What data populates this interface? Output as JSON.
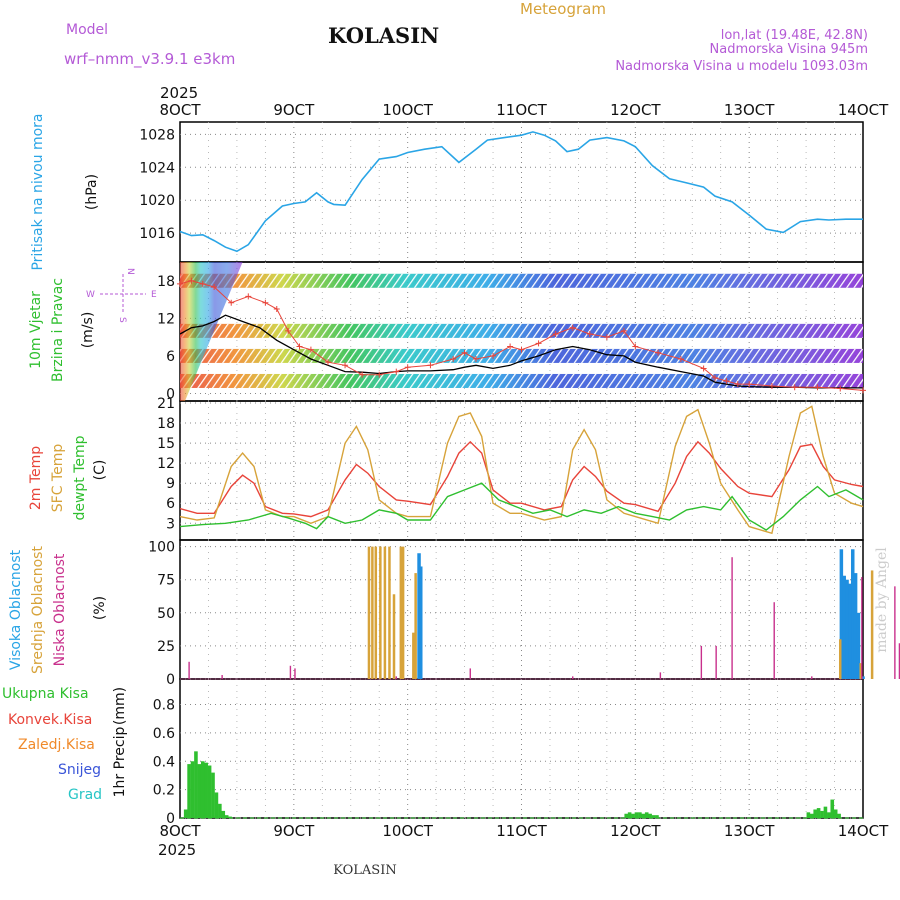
{
  "header": {
    "meteogram_label": "Meteogram",
    "model_label": "Model",
    "model_name": "wrf–nmm_v3.9.1  e3km",
    "station": "KOLASIN",
    "lonlat": "lon,lat (19.48E, 42.8N)",
    "elevation": "Nadmorska Visina 945m",
    "model_elevation": "Nadmorska Visina u modelu 1093.03m",
    "watermark": "made by Angel",
    "footer_station": "KOLASIN"
  },
  "colors": {
    "pressure": "#2aa5e6",
    "temp2m": "#e8443a",
    "sfc_temp": "#d7a33a",
    "dewpoint": "#2fbf2f",
    "high_cloud": "#1f8fe0",
    "mid_cloud": "#d7a33a",
    "low_cloud": "#c8308c",
    "precip_total": "#2fbf2f",
    "wind_speed_cross": "#e8443a",
    "wind_line": "#000000",
    "label_magenta": "#b45ad6"
  },
  "time_axis": {
    "top_year": "2025",
    "bottom_year": "2025",
    "ticks": [
      "8OCT",
      "9OCT",
      "10OCT",
      "11OCT",
      "12OCT",
      "13OCT",
      "14OCT"
    ],
    "tick_days": [
      0,
      1,
      2,
      3,
      4,
      5,
      6
    ]
  },
  "chart_data": [
    {
      "type": "line",
      "id": "pressure",
      "ylabel_main": "Pritisak na nivou mora",
      "ylabel_unit": "(hPa)",
      "ylim": [
        1012.5,
        1029.5
      ],
      "yticks": [
        1016,
        1020,
        1024,
        1028
      ],
      "series": [
        {
          "name": "MSLP",
          "x": [
            0,
            0.1,
            0.2,
            0.3,
            0.4,
            0.5,
            0.6,
            0.75,
            0.9,
            1.0,
            1.1,
            1.2,
            1.3,
            1.35,
            1.45,
            1.6,
            1.75,
            1.9,
            2.0,
            2.15,
            2.3,
            2.45,
            2.6,
            2.7,
            2.85,
            3.0,
            3.1,
            3.2,
            3.3,
            3.4,
            3.5,
            3.6,
            3.75,
            3.9,
            4.0,
            4.15,
            4.3,
            4.45,
            4.6,
            4.7,
            4.85,
            5.0,
            5.15,
            5.3,
            5.45,
            5.6,
            5.7,
            5.85,
            6.0
          ],
          "y": [
            1016.2,
            1015.7,
            1015.8,
            1015.1,
            1014.3,
            1013.8,
            1014.6,
            1017.5,
            1019.3,
            1019.6,
            1019.8,
            1020.9,
            1019.8,
            1019.5,
            1019.4,
            1022.5,
            1025.0,
            1025.3,
            1025.8,
            1026.2,
            1026.5,
            1024.6,
            1026.2,
            1027.3,
            1027.6,
            1027.9,
            1028.3,
            1027.9,
            1027.2,
            1025.9,
            1026.2,
            1027.3,
            1027.6,
            1027.2,
            1026.5,
            1024.2,
            1022.6,
            1022.1,
            1021.6,
            1020.5,
            1019.8,
            1018.2,
            1016.5,
            1016.1,
            1017.4,
            1017.7,
            1017.6,
            1017.7,
            1017.7
          ]
        }
      ]
    },
    {
      "type": "line",
      "id": "wind",
      "ylabel_main": "10m Vjetar",
      "ylabel_sub": "Brzina i Pravac",
      "ylabel_unit": "(m/s)",
      "compass": {
        "n": "N",
        "w": "W",
        "e": "E",
        "s": "S"
      },
      "ylim": [
        -1.2,
        21
      ],
      "yticks": [
        0,
        6,
        12,
        18
      ],
      "series": [
        {
          "name": "wind speed mean",
          "x": [
            0,
            0.1,
            0.2,
            0.3,
            0.4,
            0.55,
            0.7,
            0.85,
            1.0,
            1.15,
            1.3,
            1.45,
            1.6,
            1.75,
            1.9,
            2.0,
            2.2,
            2.4,
            2.5,
            2.6,
            2.75,
            2.9,
            3.0,
            3.15,
            3.3,
            3.45,
            3.6,
            3.75,
            3.9,
            4.0,
            4.2,
            4.4,
            4.6,
            4.7,
            4.8,
            4.9,
            5.0,
            5.2,
            5.4,
            5.6,
            5.8,
            6.0
          ],
          "y": [
            9.5,
            10.5,
            10.8,
            11.5,
            12.5,
            11.5,
            10.5,
            8.5,
            7.0,
            5.5,
            4.5,
            3.5,
            3.4,
            3.2,
            3.5,
            3.6,
            3.6,
            3.8,
            4.2,
            4.5,
            4.0,
            4.5,
            5.2,
            6.0,
            7.0,
            7.5,
            7.0,
            6.2,
            6.0,
            5.0,
            4.2,
            3.5,
            2.8,
            1.8,
            1.5,
            1.2,
            1.1,
            1.0,
            1.0,
            0.9,
            0.9,
            0.9
          ]
        },
        {
          "name": "wind gust",
          "x": [
            0,
            0.1,
            0.2,
            0.3,
            0.45,
            0.6,
            0.75,
            0.85,
            0.95,
            1.05,
            1.15,
            1.3,
            1.45,
            1.6,
            1.75,
            1.9,
            2.0,
            2.2,
            2.4,
            2.5,
            2.6,
            2.75,
            2.9,
            3.0,
            3.15,
            3.3,
            3.45,
            3.6,
            3.75,
            3.9,
            4.0,
            4.2,
            4.4,
            4.6,
            4.7,
            4.8,
            4.9,
            5.0,
            5.2,
            5.4,
            5.6,
            5.8,
            6.0
          ],
          "y": [
            17.5,
            18.0,
            17.5,
            17.0,
            14.5,
            15.5,
            14.5,
            13.5,
            10.0,
            7.5,
            7.0,
            5.0,
            4.5,
            3.0,
            3.0,
            3.5,
            4.2,
            4.5,
            5.5,
            6.5,
            5.5,
            6.0,
            7.5,
            7.0,
            8.0,
            9.5,
            10.5,
            9.5,
            9.0,
            10.0,
            7.5,
            6.5,
            5.5,
            4.0,
            2.5,
            2.0,
            1.5,
            1.5,
            1.2,
            1.0,
            1.0,
            0.8,
            0.5
          ]
        }
      ],
      "barb_rows": [
        2,
        6,
        10,
        18
      ]
    },
    {
      "type": "line",
      "id": "temperature",
      "ylabel_main": "2m Temp",
      "ylabel_sub": "SFC Temp",
      "ylabel_sub2": "dewpt Temp",
      "ylabel_unit": "(C)",
      "ylim": [
        0.5,
        21.3
      ],
      "yticks": [
        0,
        3,
        6,
        9,
        12,
        15,
        18,
        21
      ],
      "series": [
        {
          "name": "2m Temp",
          "x": [
            0,
            0.15,
            0.3,
            0.45,
            0.55,
            0.65,
            0.75,
            0.9,
            1.0,
            1.15,
            1.3,
            1.45,
            1.55,
            1.65,
            1.75,
            1.9,
            2.0,
            2.2,
            2.35,
            2.45,
            2.55,
            2.65,
            2.75,
            2.9,
            3.0,
            3.2,
            3.35,
            3.45,
            3.55,
            3.65,
            3.75,
            3.9,
            4.0,
            4.2,
            4.35,
            4.45,
            4.55,
            4.65,
            4.75,
            4.9,
            5.0,
            5.2,
            5.35,
            5.45,
            5.55,
            5.65,
            5.75,
            5.9,
            6.0
          ],
          "y": [
            5.2,
            4.5,
            4.5,
            8.5,
            10.2,
            9.0,
            5.5,
            4.5,
            4.4,
            4.0,
            5.0,
            9.5,
            11.8,
            10.5,
            8.5,
            6.5,
            6.3,
            5.8,
            10.0,
            13.5,
            15.2,
            13.5,
            8.0,
            6.0,
            6.0,
            5.0,
            5.5,
            9.5,
            11.5,
            10.0,
            7.8,
            6.0,
            5.8,
            4.8,
            9.0,
            13.0,
            15.2,
            13.5,
            11.2,
            8.5,
            7.5,
            7.0,
            11.0,
            14.5,
            14.8,
            11.5,
            9.5,
            8.8,
            8.5
          ]
        },
        {
          "name": "SFC Temp",
          "x": [
            0,
            0.15,
            0.3,
            0.45,
            0.55,
            0.65,
            0.75,
            0.9,
            1.0,
            1.15,
            1.3,
            1.45,
            1.55,
            1.65,
            1.75,
            1.9,
            2.0,
            2.2,
            2.35,
            2.45,
            2.55,
            2.65,
            2.75,
            2.9,
            3.0,
            3.2,
            3.35,
            3.45,
            3.55,
            3.65,
            3.75,
            3.9,
            4.0,
            4.2,
            4.35,
            4.45,
            4.55,
            4.65,
            4.75,
            4.9,
            5.0,
            5.2,
            5.35,
            5.45,
            5.55,
            5.65,
            5.75,
            5.9,
            6.0
          ],
          "y": [
            4.0,
            3.5,
            3.8,
            11.5,
            13.5,
            11.5,
            5.0,
            4.0,
            4.0,
            3.0,
            4.0,
            15.0,
            17.5,
            14.0,
            6.5,
            4.5,
            4.0,
            4.0,
            15.0,
            19.0,
            19.5,
            16.0,
            6.0,
            4.5,
            4.5,
            3.5,
            4.0,
            14.0,
            17.0,
            14.0,
            6.5,
            4.5,
            4.0,
            3.0,
            14.5,
            19.0,
            20.0,
            15.0,
            9.0,
            5.0,
            2.5,
            1.5,
            13.0,
            19.5,
            20.5,
            13.0,
            7.5,
            6.0,
            5.5
          ]
        },
        {
          "name": "dewpt Temp",
          "x": [
            0,
            0.2,
            0.4,
            0.6,
            0.8,
            0.95,
            1.1,
            1.2,
            1.3,
            1.45,
            1.6,
            1.75,
            1.9,
            2.0,
            2.2,
            2.35,
            2.5,
            2.65,
            2.8,
            2.95,
            3.1,
            3.25,
            3.4,
            3.55,
            3.7,
            3.85,
            4.0,
            4.15,
            4.3,
            4.45,
            4.6,
            4.75,
            4.85,
            5.0,
            5.15,
            5.3,
            5.45,
            5.6,
            5.7,
            5.85,
            6.0
          ],
          "y": [
            2.5,
            2.8,
            3.0,
            3.5,
            4.5,
            3.8,
            3.0,
            2.2,
            4.0,
            3.0,
            3.5,
            5.0,
            4.5,
            3.5,
            3.5,
            7.0,
            8.0,
            9.0,
            6.5,
            5.5,
            4.5,
            5.0,
            4.0,
            5.0,
            4.5,
            5.5,
            4.5,
            4.0,
            3.5,
            5.0,
            5.5,
            5.0,
            7.0,
            3.5,
            2.0,
            4.0,
            6.5,
            8.5,
            7.0,
            8.0,
            6.5
          ]
        }
      ]
    },
    {
      "type": "bar",
      "id": "clouds",
      "ylabel_high": "Visoka Oblacnost",
      "ylabel_mid": "Srednja Oblacnost",
      "ylabel_low": "Niska Oblacnost",
      "ylabel_unit": "(%)",
      "ylim": [
        0,
        105
      ],
      "yticks": [
        0,
        25,
        50,
        75,
        100
      ],
      "series": [
        {
          "name": "Visoka Oblacnost",
          "x": [
            2.1,
            2.115,
            6.0,
            5.81,
            5.835,
            5.86,
            5.885,
            5.91,
            5.935,
            5.96
          ],
          "values": [
            95,
            85,
            2,
            98,
            78,
            75,
            72,
            98,
            80,
            50
          ]
        },
        {
          "name": "Srednja Oblacnost",
          "x": [
            1.66,
            1.69,
            1.72,
            1.76,
            1.8,
            1.84,
            1.88,
            1.94,
            1.96,
            2.05,
            2.07,
            5.8,
            5.98,
            6.08
          ],
          "values": [
            100,
            100,
            100,
            100,
            100,
            100,
            64,
            100,
            100,
            35,
            80,
            30,
            12,
            82
          ]
        },
        {
          "name": "Niska Oblacnost",
          "x": [
            0.08,
            0.37,
            0.97,
            1.01,
            1.9,
            2.55,
            3.45,
            4.22,
            4.58,
            4.71,
            4.85,
            5.22,
            5.55,
            5.99,
            6.28,
            6.32,
            6.67,
            6.8
          ],
          "values": [
            13,
            3,
            10,
            8,
            2,
            8,
            2,
            5,
            25,
            25,
            92,
            58,
            2,
            77,
            70,
            27,
            27,
            27
          ]
        }
      ]
    },
    {
      "type": "bar",
      "id": "precip",
      "legend": [
        "Ukupna  Kisa",
        "Konvek.Kisa",
        "Zaledj.Kisa",
        "Snijeg",
        "Grad"
      ],
      "ylabel_main": "1hr Precip",
      "ylabel_unit": "(mm)",
      "ylim": [
        0,
        0.98
      ],
      "yticks": [
        0,
        0.2,
        0.4,
        0.6,
        0.8
      ],
      "series": [
        {
          "name": "Ukupna Kisa",
          "x": [
            0.05,
            0.08,
            0.11,
            0.14,
            0.17,
            0.2,
            0.23,
            0.26,
            0.29,
            0.32,
            0.35,
            0.38,
            0.41,
            0.44,
            3.92,
            3.95,
            3.98,
            4.01,
            4.04,
            4.07,
            4.1,
            4.13,
            4.16,
            4.19,
            5.52,
            5.55,
            5.58,
            5.61,
            5.64,
            5.67,
            5.7,
            5.73,
            5.76,
            5.79
          ],
          "values": [
            0.06,
            0.38,
            0.4,
            0.47,
            0.38,
            0.4,
            0.39,
            0.37,
            0.32,
            0.18,
            0.1,
            0.05,
            0.02,
            0.01,
            0.03,
            0.04,
            0.03,
            0.04,
            0.04,
            0.03,
            0.04,
            0.03,
            0.02,
            0.02,
            0.04,
            0.03,
            0.06,
            0.07,
            0.05,
            0.08,
            0.04,
            0.13,
            0.06,
            0.03
          ]
        }
      ]
    }
  ]
}
